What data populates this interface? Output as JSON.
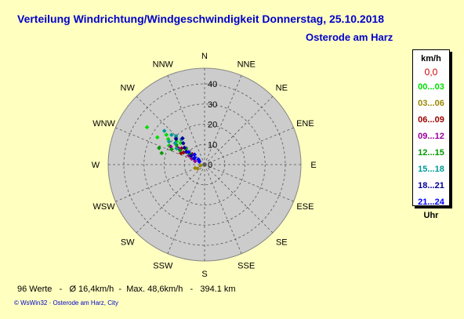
{
  "header": {
    "title": "Verteilung Windrichtung/Windgeschwindigkeit  Donnerstag, 25.10.2018",
    "location": "Osterode am Harz"
  },
  "legend": {
    "unit": "km/h",
    "calm": "0,0",
    "footer": "Uhr",
    "items": [
      {
        "label": "00...03",
        "color": "#00dd00"
      },
      {
        "label": "03...06",
        "color": "#998800"
      },
      {
        "label": "06...09",
        "color": "#990000"
      },
      {
        "label": "09...12",
        "color": "#990099"
      },
      {
        "label": "12...15",
        "color": "#009900"
      },
      {
        "label": "15...18",
        "color": "#009999"
      },
      {
        "label": "18...21",
        "color": "#000099"
      },
      {
        "label": "21...24",
        "color": "#0000ff"
      }
    ]
  },
  "stats": {
    "count": "96 Werte",
    "avg": "Ø 16,4km/h",
    "max": "Max. 48,6km/h",
    "distance": "394.1 km"
  },
  "credit": "© WsWin32  ·  Osterode am Harz, City",
  "chart_data": {
    "type": "scatter",
    "subtype": "wind-rose-polar",
    "directions": [
      "N",
      "NNE",
      "NE",
      "ENE",
      "E",
      "ESE",
      "SE",
      "SSE",
      "S",
      "SSW",
      "SW",
      "WSW",
      "W",
      "WNW",
      "NW",
      "NNW"
    ],
    "radial_ticks": [
      0,
      10,
      20,
      30,
      40
    ],
    "radial_max": 40,
    "series": [
      {
        "name": "00...03",
        "color": "#00dd00",
        "points": [
          {
            "dir": 303,
            "speed": 34
          },
          {
            "dir": 300,
            "speed": 27
          },
          {
            "dir": 305,
            "speed": 22
          },
          {
            "dir": 310,
            "speed": 18
          },
          {
            "dir": 308,
            "speed": 24
          },
          {
            "dir": 312,
            "speed": 16
          },
          {
            "dir": 298,
            "speed": 20
          }
        ]
      },
      {
        "name": "03...06",
        "color": "#998800",
        "points": [
          {
            "dir": 250,
            "speed": 5
          },
          {
            "dir": 260,
            "speed": 2
          },
          {
            "dir": 300,
            "speed": 8
          },
          {
            "dir": 240,
            "speed": 4
          }
        ]
      },
      {
        "name": "06...09",
        "color": "#990000",
        "points": [
          {
            "dir": 305,
            "speed": 14
          },
          {
            "dir": 300,
            "speed": 12
          },
          {
            "dir": 308,
            "speed": 10
          },
          {
            "dir": 302,
            "speed": 16
          },
          {
            "dir": 310,
            "speed": 8
          },
          {
            "dir": 296,
            "speed": 13
          }
        ]
      },
      {
        "name": "09...12",
        "color": "#990099",
        "points": [
          {
            "dir": 300,
            "speed": 9
          },
          {
            "dir": 295,
            "speed": 7
          },
          {
            "dir": 305,
            "speed": 11
          },
          {
            "dir": 290,
            "speed": 5
          },
          {
            "dir": 302,
            "speed": 15
          },
          {
            "dir": 298,
            "speed": 19
          }
        ]
      },
      {
        "name": "12...15",
        "color": "#009900",
        "points": [
          {
            "dir": 305,
            "speed": 17
          },
          {
            "dir": 300,
            "speed": 14
          },
          {
            "dir": 310,
            "speed": 12
          },
          {
            "dir": 295,
            "speed": 18
          },
          {
            "dir": 285,
            "speed": 22
          },
          {
            "dir": 290,
            "speed": 24
          },
          {
            "dir": 306,
            "speed": 9
          }
        ]
      },
      {
        "name": "15...18",
        "color": "#009999",
        "points": [
          {
            "dir": 303,
            "speed": 21
          },
          {
            "dir": 310,
            "speed": 26
          },
          {
            "dir": 312,
            "speed": 22
          },
          {
            "dir": 306,
            "speed": 18
          },
          {
            "dir": 315,
            "speed": 20
          },
          {
            "dir": 300,
            "speed": 16
          },
          {
            "dir": 318,
            "speed": 17
          }
        ]
      },
      {
        "name": "18...21",
        "color": "#000099",
        "points": [
          {
            "dir": 300,
            "speed": 6
          },
          {
            "dir": 303,
            "speed": 8
          },
          {
            "dir": 305,
            "speed": 11
          },
          {
            "dir": 310,
            "speed": 13
          },
          {
            "dir": 315,
            "speed": 15
          },
          {
            "dir": 320,
            "speed": 17
          },
          {
            "dir": 312,
            "speed": 19
          }
        ]
      },
      {
        "name": "21...24",
        "color": "#0000ff",
        "points": [
          {
            "dir": 310,
            "speed": 4
          },
          {
            "dir": 305,
            "speed": 6
          },
          {
            "dir": 300,
            "speed": 3
          },
          {
            "dir": 315,
            "speed": 7
          },
          {
            "dir": 308,
            "speed": 10
          }
        ]
      }
    ]
  }
}
